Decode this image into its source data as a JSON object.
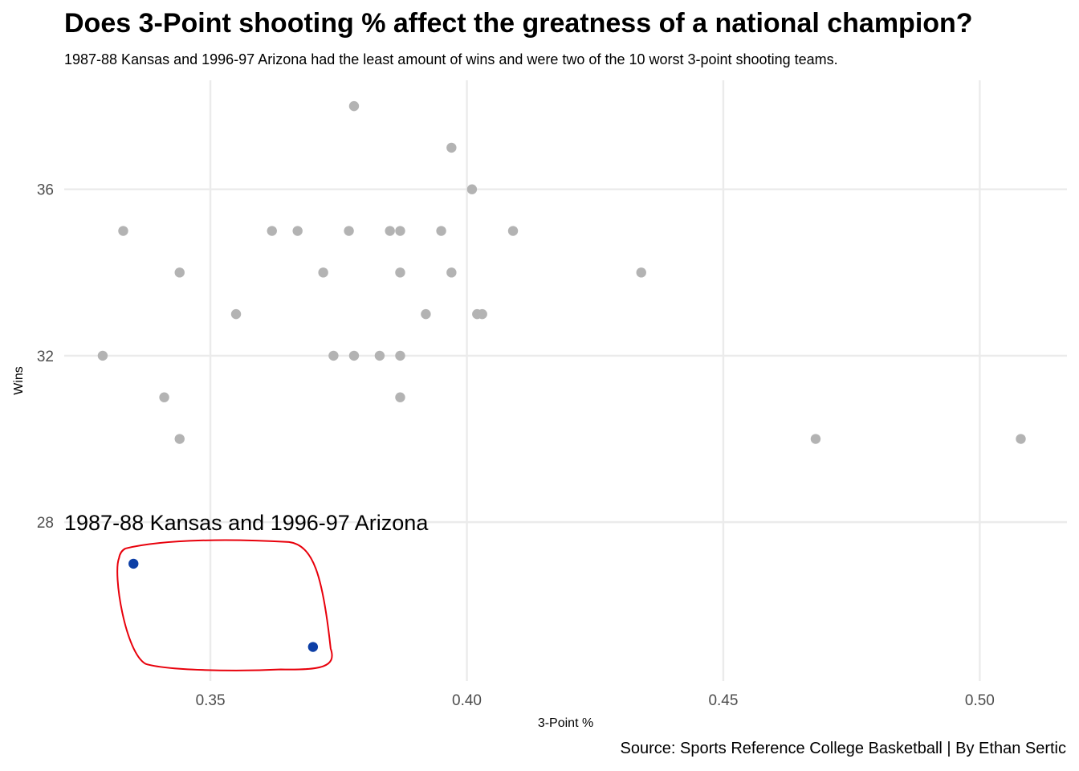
{
  "title": "Does 3-Point shooting % affect the greatness of a national champion?",
  "subtitle": "1987-88 Kansas and 1996-97 Arizona had the least amount of wins and were two of the 10 worst 3-point shooting teams.",
  "caption": "Source: Sports Reference College Basketball | By Ethan Sertic",
  "chart_data": {
    "type": "scatter",
    "xlabel": "3-Point %",
    "ylabel": "Wins",
    "xlim": [
      0.3215,
      0.517
    ],
    "ylim": [
      24.18,
      38.62
    ],
    "x_ticks": [
      0.35,
      0.4,
      0.45,
      0.5
    ],
    "x_tick_labels": [
      "0.35",
      "0.40",
      "0.45",
      "0.50"
    ],
    "y_ticks": [
      28,
      32,
      36
    ],
    "y_tick_labels": [
      "28",
      "32",
      "36"
    ],
    "grid": true,
    "legend": "none",
    "colors": {
      "other": "#b3b3b3",
      "highlight": "#0d3fa6",
      "circle": "#e8000b",
      "grid": "#ebebeb"
    },
    "series": [
      {
        "points": [
          [
            0.378,
            38
          ],
          [
            0.397,
            37
          ],
          [
            0.401,
            36
          ],
          [
            0.333,
            35
          ],
          [
            0.362,
            35
          ],
          [
            0.367,
            35
          ],
          [
            0.377,
            35
          ],
          [
            0.385,
            35
          ],
          [
            0.387,
            35
          ],
          [
            0.395,
            35
          ],
          [
            0.409,
            35
          ],
          [
            0.344,
            34
          ],
          [
            0.372,
            34
          ],
          [
            0.387,
            34
          ],
          [
            0.397,
            34
          ],
          [
            0.434,
            34
          ],
          [
            0.355,
            33
          ],
          [
            0.392,
            33
          ],
          [
            0.402,
            33
          ],
          [
            0.403,
            33
          ],
          [
            0.329,
            32
          ],
          [
            0.374,
            32
          ],
          [
            0.378,
            32
          ],
          [
            0.383,
            32
          ],
          [
            0.387,
            32
          ],
          [
            0.341,
            31
          ],
          [
            0.387,
            31
          ],
          [
            0.344,
            30
          ],
          [
            0.468,
            30
          ],
          [
            0.508,
            30
          ]
        ]
      },
      {
        "points": [
          [
            0.335,
            27
          ],
          [
            0.37,
            25
          ]
        ]
      }
    ],
    "annotations": [
      {
        "text": "1987-88 Kansas and 1996-97 Arizona",
        "x": 0.3215,
        "y": 28
      }
    ]
  }
}
